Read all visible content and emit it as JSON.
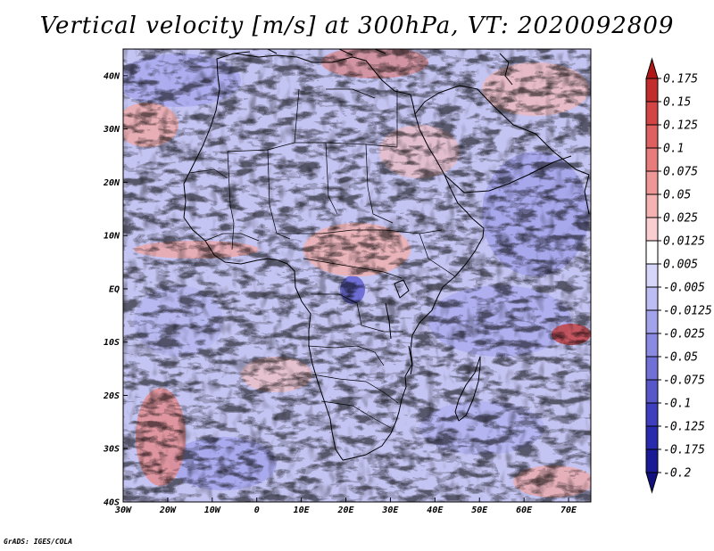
{
  "title": "Vertical velocity [m/s] at 300hPa, VT: 2020092809",
  "credit": "GrADS: IGES/COLA",
  "chart_data": {
    "type": "heatmap",
    "variable": "Vertical velocity",
    "units": "m/s",
    "level": "300hPa",
    "valid_time": "2020092809",
    "lon_range": [
      -30,
      75
    ],
    "lat_range": [
      -40,
      45
    ],
    "x_ticks": [
      {
        "value": -30,
        "label": "30W"
      },
      {
        "value": -20,
        "label": "20W"
      },
      {
        "value": -10,
        "label": "10W"
      },
      {
        "value": 0,
        "label": "0"
      },
      {
        "value": 10,
        "label": "10E"
      },
      {
        "value": 20,
        "label": "20E"
      },
      {
        "value": 30,
        "label": "30E"
      },
      {
        "value": 40,
        "label": "40E"
      },
      {
        "value": 50,
        "label": "50E"
      },
      {
        "value": 60,
        "label": "60E"
      },
      {
        "value": 70,
        "label": "70E"
      }
    ],
    "y_ticks": [
      {
        "value": 40,
        "label": "40N"
      },
      {
        "value": 30,
        "label": "30N"
      },
      {
        "value": 20,
        "label": "20N"
      },
      {
        "value": 10,
        "label": "10N"
      },
      {
        "value": 0,
        "label": "EQ"
      },
      {
        "value": -10,
        "label": "10S"
      },
      {
        "value": -20,
        "label": "20S"
      },
      {
        "value": -30,
        "label": "30S"
      },
      {
        "value": -40,
        "label": "40S"
      }
    ],
    "colorbar": {
      "boundaries": [
        "0.175",
        "0.15",
        "0.125",
        "0.1",
        "0.075",
        "0.05",
        "0.025",
        "0.0125",
        "0.005",
        "-0.005",
        "-0.0125",
        "-0.025",
        "-0.05",
        "-0.075",
        "-0.1",
        "-0.125",
        "-0.175",
        "-0.2"
      ],
      "colors": [
        "#b01818",
        "#c22c2c",
        "#d34545",
        "#df6060",
        "#e87c7c",
        "#ef9797",
        "#f5b2b2",
        "#faced0",
        "#ffffff",
        "#d6d6fa",
        "#bdbdf4",
        "#a3a3ec",
        "#8a8ae2",
        "#7070d6",
        "#5757ca",
        "#3e3ebe",
        "#2a2aae",
        "#1a1a96",
        "#10107e"
      ]
    }
  }
}
